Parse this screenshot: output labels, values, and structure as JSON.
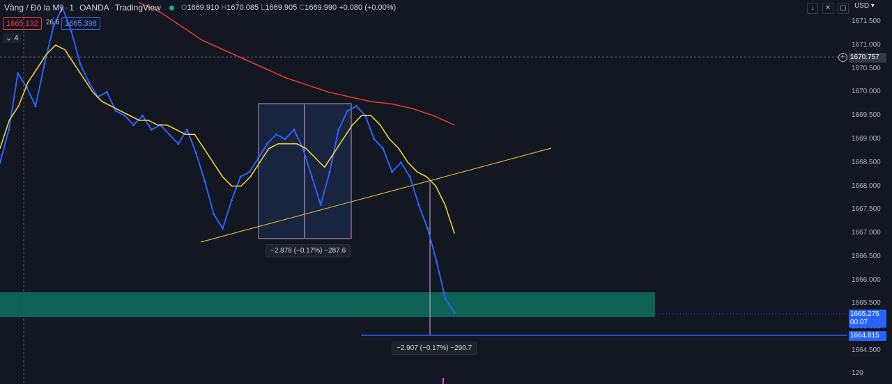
{
  "header": {
    "symbol": "Vàng / Đô la Mỹ",
    "interval": "1",
    "broker": "OANDA",
    "platform": "TradingView",
    "open_label": "O",
    "open": "1669.910",
    "high_label": "H",
    "high": "1670.085",
    "low_label": "L",
    "low": "1669.905",
    "close_label": "C",
    "close": "1669.990",
    "change": "+0.080 (+0.00%)",
    "status_color": "#26a69a"
  },
  "trade": {
    "sell": "1665.132",
    "spread": "26.6",
    "buy": "1665.398"
  },
  "indicator_count": "4",
  "currency": "USD",
  "toolbar_icons": [
    "arrow-down-icon",
    "collapse-icon",
    "restore-icon"
  ],
  "axis": {
    "ticks": [
      "1671.500",
      "1671.000",
      "1670.500",
      "1670.000",
      "1669.500",
      "1669.000",
      "1668.500",
      "1668.000",
      "1667.500",
      "1667.000",
      "1666.500",
      "1666.000",
      "1665.500",
      "1665.000",
      "1664.500"
    ],
    "crosshair_price": "1670.757",
    "last_price": "1665.275",
    "countdown": "00:07",
    "hline_price": "1664.815",
    "bottom_label": "120"
  },
  "measures": [
    {
      "text": "−2.876 (−0.17%) −287.6"
    },
    {
      "text": "−2.907 (−0.17%) −290.7"
    }
  ],
  "colors": {
    "background": "#131722",
    "candle_body": "#2962ff",
    "ma_fast": "#f0d13c",
    "ma_slow": "#e53935",
    "zone": "#0f6e5d",
    "trendline": "#c8b437",
    "hline": "#2962ff"
  },
  "chart_data": {
    "type": "line",
    "ylim": [
      1664.3,
      1671.9
    ],
    "y_axis_side": "right",
    "grid": false,
    "series": [
      {
        "values": [
          1668.5,
          1669.2,
          1670.4,
          1670.1,
          1669.7,
          1670.6,
          1671.4,
          1671.8,
          1671.3,
          1670.6,
          1670.2,
          1669.9,
          1670.0,
          1669.6,
          1669.5,
          1669.3,
          1669.5,
          1669.2,
          1669.3,
          1669.1,
          1668.9,
          1669.2,
          1668.7,
          1668.1,
          1667.4,
          1667.1,
          1667.7,
          1668.2,
          1668.3,
          1668.6,
          1668.9,
          1669.1,
          1669.0,
          1669.2,
          1668.8,
          1668.2,
          1667.6,
          1668.3,
          1669.2,
          1669.6,
          1669.7,
          1669.5,
          1669.0,
          1668.8,
          1668.3,
          1668.5,
          1668.2,
          1667.6,
          1667.1,
          1666.4,
          1665.6,
          1665.3
        ]
      },
      {
        "values": [
          1668.8,
          1669.4,
          1669.7,
          1670.2,
          1670.5,
          1670.8,
          1671.0,
          1670.9,
          1670.6,
          1670.3,
          1670.0,
          1669.8,
          1669.7,
          1669.6,
          1669.5,
          1669.4,
          1669.4,
          1669.3,
          1669.3,
          1669.2,
          1669.1,
          1669.1,
          1668.8,
          1668.5,
          1668.2,
          1668.0,
          1668.0,
          1668.2,
          1668.5,
          1668.8,
          1668.9,
          1668.9,
          1668.9,
          1668.8,
          1668.6,
          1668.4,
          1668.7,
          1669.0,
          1669.3,
          1669.5,
          1669.5,
          1669.3,
          1669.0,
          1668.8,
          1668.5,
          1668.3,
          1668.2,
          1668.0,
          1667.6,
          1667.0
        ]
      },
      {
        "values": [
          1671.9,
          1671.7,
          1671.4,
          1671.1,
          1670.9,
          1670.7,
          1670.5,
          1670.3,
          1670.15,
          1670.0,
          1669.9,
          1669.8,
          1669.75,
          1669.65,
          1669.5,
          1669.3
        ]
      }
    ]
  }
}
